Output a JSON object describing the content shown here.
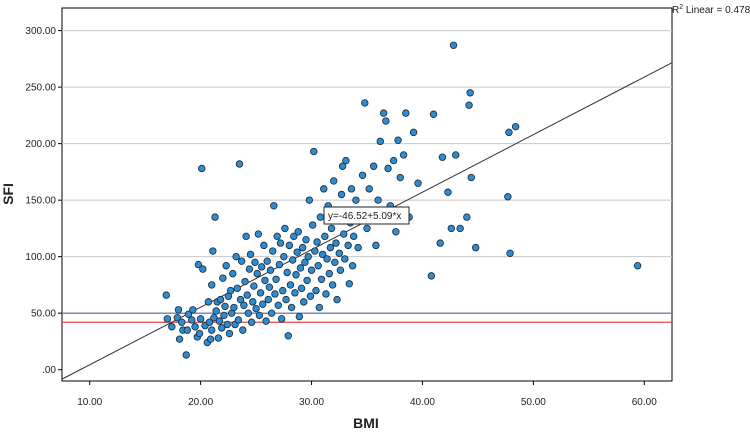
{
  "chart_data": {
    "type": "scatter",
    "xlabel": "BMI",
    "ylabel": "SFI",
    "xlim": [
      7.5,
      62.5
    ],
    "ylim": [
      -10,
      320
    ],
    "x_ticks": [
      "10.00",
      "20.00",
      "30.00",
      "40.00",
      "50.00",
      "60.00"
    ],
    "x_tick_values": [
      10,
      20,
      30,
      40,
      50,
      60
    ],
    "y_ticks": [
      ".00",
      "50.00",
      "100.00",
      "150.00",
      "200.00",
      "250.00",
      "300.00"
    ],
    "y_tick_values": [
      0,
      50,
      100,
      150,
      200,
      250,
      300
    ],
    "grid": "horizontal",
    "fit_line": {
      "label": "y=-46.52+5.09*x",
      "intercept": -46.52,
      "slope": 5.09
    },
    "r2_label": "R",
    "r2_sup": "2",
    "r2_text": " Linear = 0.478",
    "reference_lines": [
      {
        "y": 50,
        "color": "#5a6aa8"
      },
      {
        "y": 42,
        "color": "#e04848"
      }
    ],
    "point_color": "#2e8bcf",
    "points": [
      [
        16.9,
        66
      ],
      [
        17.0,
        45
      ],
      [
        17.4,
        38
      ],
      [
        17.9,
        46
      ],
      [
        18.0,
        53
      ],
      [
        18.1,
        27
      ],
      [
        18.3,
        42
      ],
      [
        18.4,
        35
      ],
      [
        18.7,
        13
      ],
      [
        18.8,
        35
      ],
      [
        18.9,
        49
      ],
      [
        19.2,
        44
      ],
      [
        19.3,
        53
      ],
      [
        19.5,
        38
      ],
      [
        19.7,
        29
      ],
      [
        19.8,
        93
      ],
      [
        19.9,
        32
      ],
      [
        20.0,
        45
      ],
      [
        20.1,
        178
      ],
      [
        20.2,
        89
      ],
      [
        20.4,
        39
      ],
      [
        20.6,
        24
      ],
      [
        20.7,
        60
      ],
      [
        20.8,
        42
      ],
      [
        20.9,
        27
      ],
      [
        21.0,
        35
      ],
      [
        21.0,
        75
      ],
      [
        21.1,
        105
      ],
      [
        21.2,
        46
      ],
      [
        21.3,
        135
      ],
      [
        21.4,
        52
      ],
      [
        21.5,
        60
      ],
      [
        21.6,
        28
      ],
      [
        21.7,
        43
      ],
      [
        21.8,
        62
      ],
      [
        21.9,
        37
      ],
      [
        22.0,
        81
      ],
      [
        22.1,
        48
      ],
      [
        22.2,
        56
      ],
      [
        22.3,
        92
      ],
      [
        22.4,
        40
      ],
      [
        22.5,
        65
      ],
      [
        22.6,
        32
      ],
      [
        22.7,
        70
      ],
      [
        22.8,
        50
      ],
      [
        22.9,
        85
      ],
      [
        23.0,
        55
      ],
      [
        23.1,
        40
      ],
      [
        23.2,
        100
      ],
      [
        23.3,
        72
      ],
      [
        23.4,
        44
      ],
      [
        23.5,
        182
      ],
      [
        23.6,
        62
      ],
      [
        23.7,
        96
      ],
      [
        23.8,
        35
      ],
      [
        23.9,
        57
      ],
      [
        24.0,
        78
      ],
      [
        24.1,
        118
      ],
      [
        24.2,
        66
      ],
      [
        24.3,
        50
      ],
      [
        24.4,
        89
      ],
      [
        24.5,
        102
      ],
      [
        24.6,
        42
      ],
      [
        24.7,
        60
      ],
      [
        24.8,
        74
      ],
      [
        24.9,
        95
      ],
      [
        25.0,
        54
      ],
      [
        25.1,
        85
      ],
      [
        25.2,
        120
      ],
      [
        25.3,
        48
      ],
      [
        25.4,
        68
      ],
      [
        25.5,
        91
      ],
      [
        25.6,
        58
      ],
      [
        25.7,
        110
      ],
      [
        25.8,
        79
      ],
      [
        25.9,
        43
      ],
      [
        26.0,
        96
      ],
      [
        26.1,
        62
      ],
      [
        26.2,
        73
      ],
      [
        26.3,
        88
      ],
      [
        26.4,
        50
      ],
      [
        26.5,
        105
      ],
      [
        26.6,
        145
      ],
      [
        26.7,
        67
      ],
      [
        26.8,
        80
      ],
      [
        26.9,
        118
      ],
      [
        27.0,
        57
      ],
      [
        27.1,
        93
      ],
      [
        27.2,
        112
      ],
      [
        27.3,
        45
      ],
      [
        27.4,
        70
      ],
      [
        27.5,
        100
      ],
      [
        27.6,
        125
      ],
      [
        27.7,
        62
      ],
      [
        27.8,
        86
      ],
      [
        27.9,
        30
      ],
      [
        28.0,
        110
      ],
      [
        28.1,
        75
      ],
      [
        28.2,
        55
      ],
      [
        28.3,
        97
      ],
      [
        28.4,
        118
      ],
      [
        28.5,
        68
      ],
      [
        28.6,
        84
      ],
      [
        28.7,
        104
      ],
      [
        28.8,
        122
      ],
      [
        28.9,
        47
      ],
      [
        29.0,
        90
      ],
      [
        29.1,
        72
      ],
      [
        29.2,
        108
      ],
      [
        29.3,
        60
      ],
      [
        29.4,
        95
      ],
      [
        29.5,
        115
      ],
      [
        29.6,
        79
      ],
      [
        29.7,
        100
      ],
      [
        29.8,
        150
      ],
      [
        29.9,
        65
      ],
      [
        30.0,
        88
      ],
      [
        30.1,
        128
      ],
      [
        30.2,
        193
      ],
      [
        30.3,
        105
      ],
      [
        30.4,
        70
      ],
      [
        30.5,
        113
      ],
      [
        30.6,
        92
      ],
      [
        30.7,
        55
      ],
      [
        30.8,
        135
      ],
      [
        30.9,
        80
      ],
      [
        31.0,
        102
      ],
      [
        31.1,
        160
      ],
      [
        31.2,
        118
      ],
      [
        31.3,
        67
      ],
      [
        31.4,
        98
      ],
      [
        31.5,
        145
      ],
      [
        31.6,
        85
      ],
      [
        31.7,
        108
      ],
      [
        31.8,
        125
      ],
      [
        31.9,
        75
      ],
      [
        32.0,
        167
      ],
      [
        32.1,
        95
      ],
      [
        32.2,
        112
      ],
      [
        32.3,
        62
      ],
      [
        32.4,
        138
      ],
      [
        32.5,
        103
      ],
      [
        32.6,
        88
      ],
      [
        32.7,
        155
      ],
      [
        32.8,
        180
      ],
      [
        32.9,
        120
      ],
      [
        33.0,
        98
      ],
      [
        33.1,
        185
      ],
      [
        33.2,
        140
      ],
      [
        33.3,
        110
      ],
      [
        33.4,
        76
      ],
      [
        33.5,
        130
      ],
      [
        33.6,
        160
      ],
      [
        33.7,
        92
      ],
      [
        33.8,
        118
      ],
      [
        34.0,
        150
      ],
      [
        34.2,
        108
      ],
      [
        34.4,
        132
      ],
      [
        34.6,
        172
      ],
      [
        34.8,
        236
      ],
      [
        35.0,
        125
      ],
      [
        35.2,
        160
      ],
      [
        35.4,
        140
      ],
      [
        35.6,
        180
      ],
      [
        35.8,
        110
      ],
      [
        36.0,
        150
      ],
      [
        36.2,
        202
      ],
      [
        36.4,
        135
      ],
      [
        36.5,
        227
      ],
      [
        36.7,
        220
      ],
      [
        36.9,
        178
      ],
      [
        37.1,
        145
      ],
      [
        37.4,
        185
      ],
      [
        37.6,
        122
      ],
      [
        37.8,
        203
      ],
      [
        38.0,
        170
      ],
      [
        38.3,
        190
      ],
      [
        38.5,
        227
      ],
      [
        38.8,
        135
      ],
      [
        39.2,
        210
      ],
      [
        39.6,
        165
      ],
      [
        40.8,
        83
      ],
      [
        41.0,
        226
      ],
      [
        41.6,
        112
      ],
      [
        41.8,
        188
      ],
      [
        42.3,
        157
      ],
      [
        42.6,
        125
      ],
      [
        42.8,
        287
      ],
      [
        43.0,
        190
      ],
      [
        43.4,
        125
      ],
      [
        44.0,
        135
      ],
      [
        44.2,
        234
      ],
      [
        44.3,
        245
      ],
      [
        44.4,
        170
      ],
      [
        44.8,
        108
      ],
      [
        47.7,
        153
      ],
      [
        47.8,
        210
      ],
      [
        47.9,
        103
      ],
      [
        48.4,
        215
      ],
      [
        59.4,
        92
      ]
    ]
  }
}
